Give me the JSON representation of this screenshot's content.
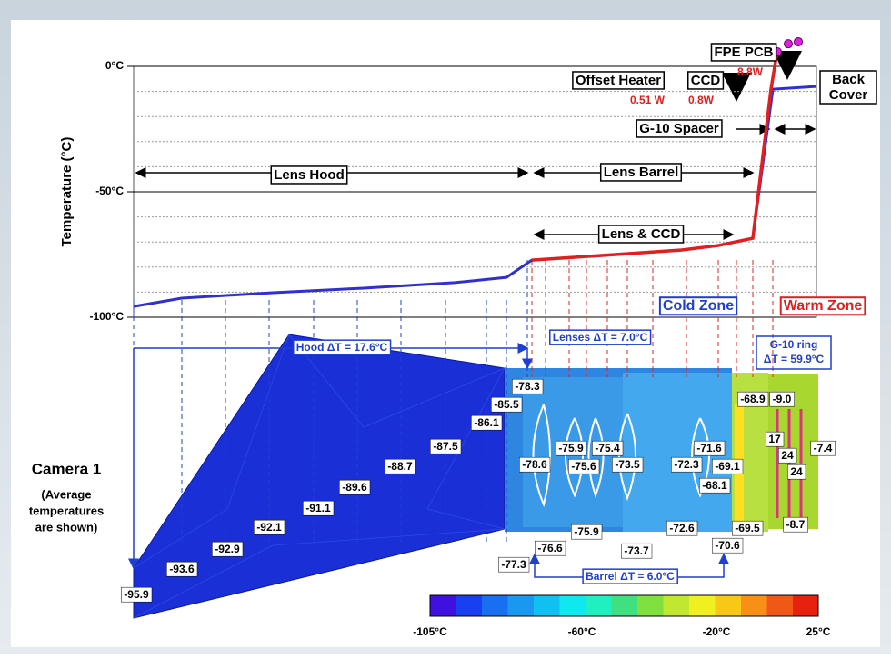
{
  "axis": {
    "title": "Temperature (°C)",
    "ylim": [
      -100,
      0
    ],
    "ticks": [
      {
        "value": 0,
        "label": "0°C"
      },
      {
        "value": -50,
        "label": "-50°C"
      },
      {
        "value": -100,
        "label": "-100°C"
      }
    ],
    "gridlines": [
      -10,
      -20,
      -30,
      -40,
      -60,
      -70,
      -80,
      -90
    ]
  },
  "profile": {
    "blue": [
      -95.7,
      -92.4,
      -90.2,
      -88.4,
      -86.2,
      -84.1,
      -77.2,
      -75.4,
      -73.2,
      -71.4,
      -68.5,
      -9.1,
      -8.0
    ],
    "red": [
      -77.2,
      -75.4,
      -73.2,
      -71.4,
      -68.5,
      -9.1,
      6.5
    ],
    "pcb": [
      5.8,
      9,
      9.8
    ]
  },
  "regions": {
    "hood": "Lens Hood",
    "barrel": "Lens Barrel",
    "lens_ccd": "Lens & CCD",
    "spacer": "G-10 Spacer",
    "back_cover": [
      "Back",
      "Cover"
    ],
    "fpe_pcb": "FPE PCB",
    "offset_heater": "Offset Heater",
    "ccd": "CCD"
  },
  "power": {
    "heater": "0.51 W",
    "ccd": "0.8W",
    "pcb": "8.8W"
  },
  "zones": {
    "cold": "Cold Zone",
    "warm": "Warm Zone"
  },
  "deltas": {
    "hood": "Hood ΔT = 17.6°C",
    "lenses": "Lenses ΔT = 7.0°C",
    "g10": [
      "G-10 ring",
      "ΔT = 59.9°C"
    ],
    "barrel": "Barrel ΔT = 6.0°C"
  },
  "camera": {
    "title": "Camera 1",
    "note": [
      "(Average",
      "temperatures",
      "are shown)"
    ]
  },
  "temperatures": [
    "-95.9",
    "-93.6",
    "-92.9",
    "-92.1",
    "-91.1",
    "-89.6",
    "-88.7",
    "-87.5",
    "-86.1",
    "-85.5",
    "-78.3",
    "-78.6",
    "-75.9",
    "-75.4",
    "-75.6",
    "-73.5",
    "-72.3",
    "-71.6",
    "-69.1",
    "-68.1",
    "-68.9",
    "-9.0",
    "17",
    "24",
    "24",
    "-7.4",
    "-8.7",
    "-69.5",
    "-70.6",
    "-72.6",
    "-75.9",
    "-73.7",
    "-76.6",
    "-77.3"
  ],
  "colorbar": {
    "labels": [
      "-105°C",
      "-60°C",
      "-20°C",
      "25°C"
    ]
  }
}
